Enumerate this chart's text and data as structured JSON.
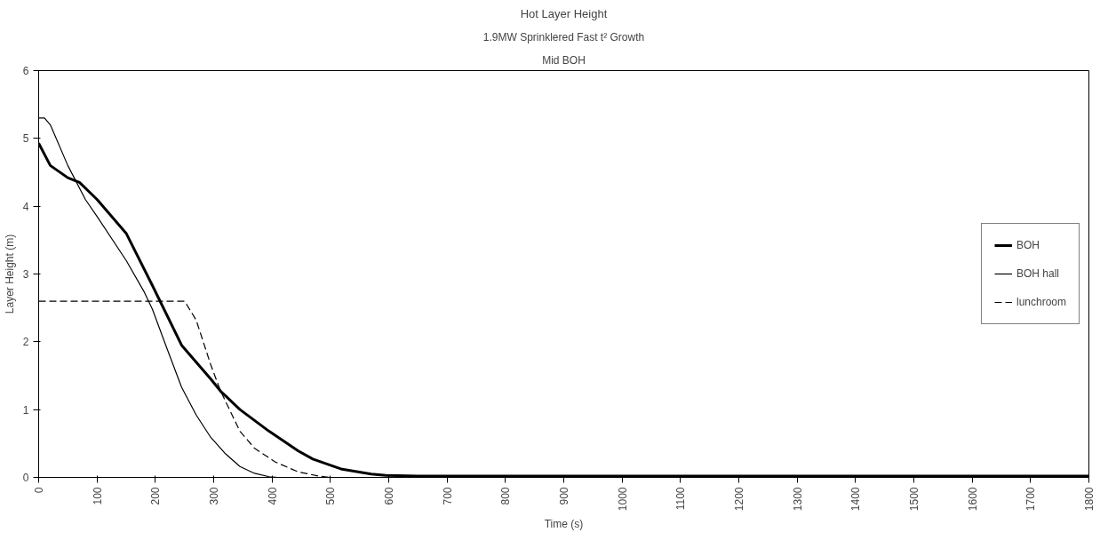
{
  "chart_data": {
    "type": "line",
    "title": "Hot Layer Height",
    "subtitle": "1.9MW Sprinklered Fast t² Growth",
    "annotations": [
      "Mid BOH"
    ],
    "xlabel": "Time (s)",
    "ylabel": "Layer Height (m)",
    "xlim": [
      0,
      1800
    ],
    "ylim": [
      0,
      6
    ],
    "xticks": [
      0,
      100,
      200,
      300,
      400,
      500,
      600,
      700,
      800,
      900,
      1000,
      1100,
      1200,
      1300,
      1400,
      1500,
      1600,
      1700,
      1800
    ],
    "yticks": [
      0,
      1,
      2,
      3,
      4,
      5,
      6
    ],
    "grid": false,
    "legend": "right",
    "marker": "none",
    "series": [
      {
        "name": "BOH",
        "color": "#000000",
        "line_style": "solid",
        "x": [
          0,
          20,
          50,
          70,
          100,
          150,
          195,
          245,
          295,
          312,
          345,
          395,
          445,
          470,
          520,
          570,
          595,
          650,
          700,
          1800
        ],
        "values": [
          4.93,
          4.6,
          4.42,
          4.35,
          4.1,
          3.6,
          2.83,
          1.95,
          1.45,
          1.27,
          1.0,
          0.68,
          0.39,
          0.27,
          0.12,
          0.05,
          0.03,
          0.02,
          0.02,
          0.02
        ]
      },
      {
        "name": "BOH hall",
        "color": "#000000",
        "line_style": "solid",
        "x": [
          0,
          10,
          20,
          50,
          80,
          100,
          150,
          180,
          195,
          220,
          245,
          270,
          295,
          320,
          345,
          370,
          395,
          410,
          1800
        ],
        "values": [
          5.3,
          5.3,
          5.2,
          4.6,
          4.1,
          3.85,
          3.2,
          2.75,
          2.48,
          1.9,
          1.33,
          0.92,
          0.59,
          0.35,
          0.16,
          0.06,
          0.01,
          0,
          0
        ]
      },
      {
        "name": "lunchroom",
        "color": "#000000",
        "line_style": "dashed",
        "x": [
          0,
          250,
          270,
          295,
          312,
          345,
          370,
          405,
          445,
          480,
          500,
          1800
        ],
        "values": [
          2.6,
          2.6,
          2.32,
          1.66,
          1.27,
          0.68,
          0.43,
          0.23,
          0.08,
          0.02,
          0,
          0
        ]
      }
    ]
  }
}
